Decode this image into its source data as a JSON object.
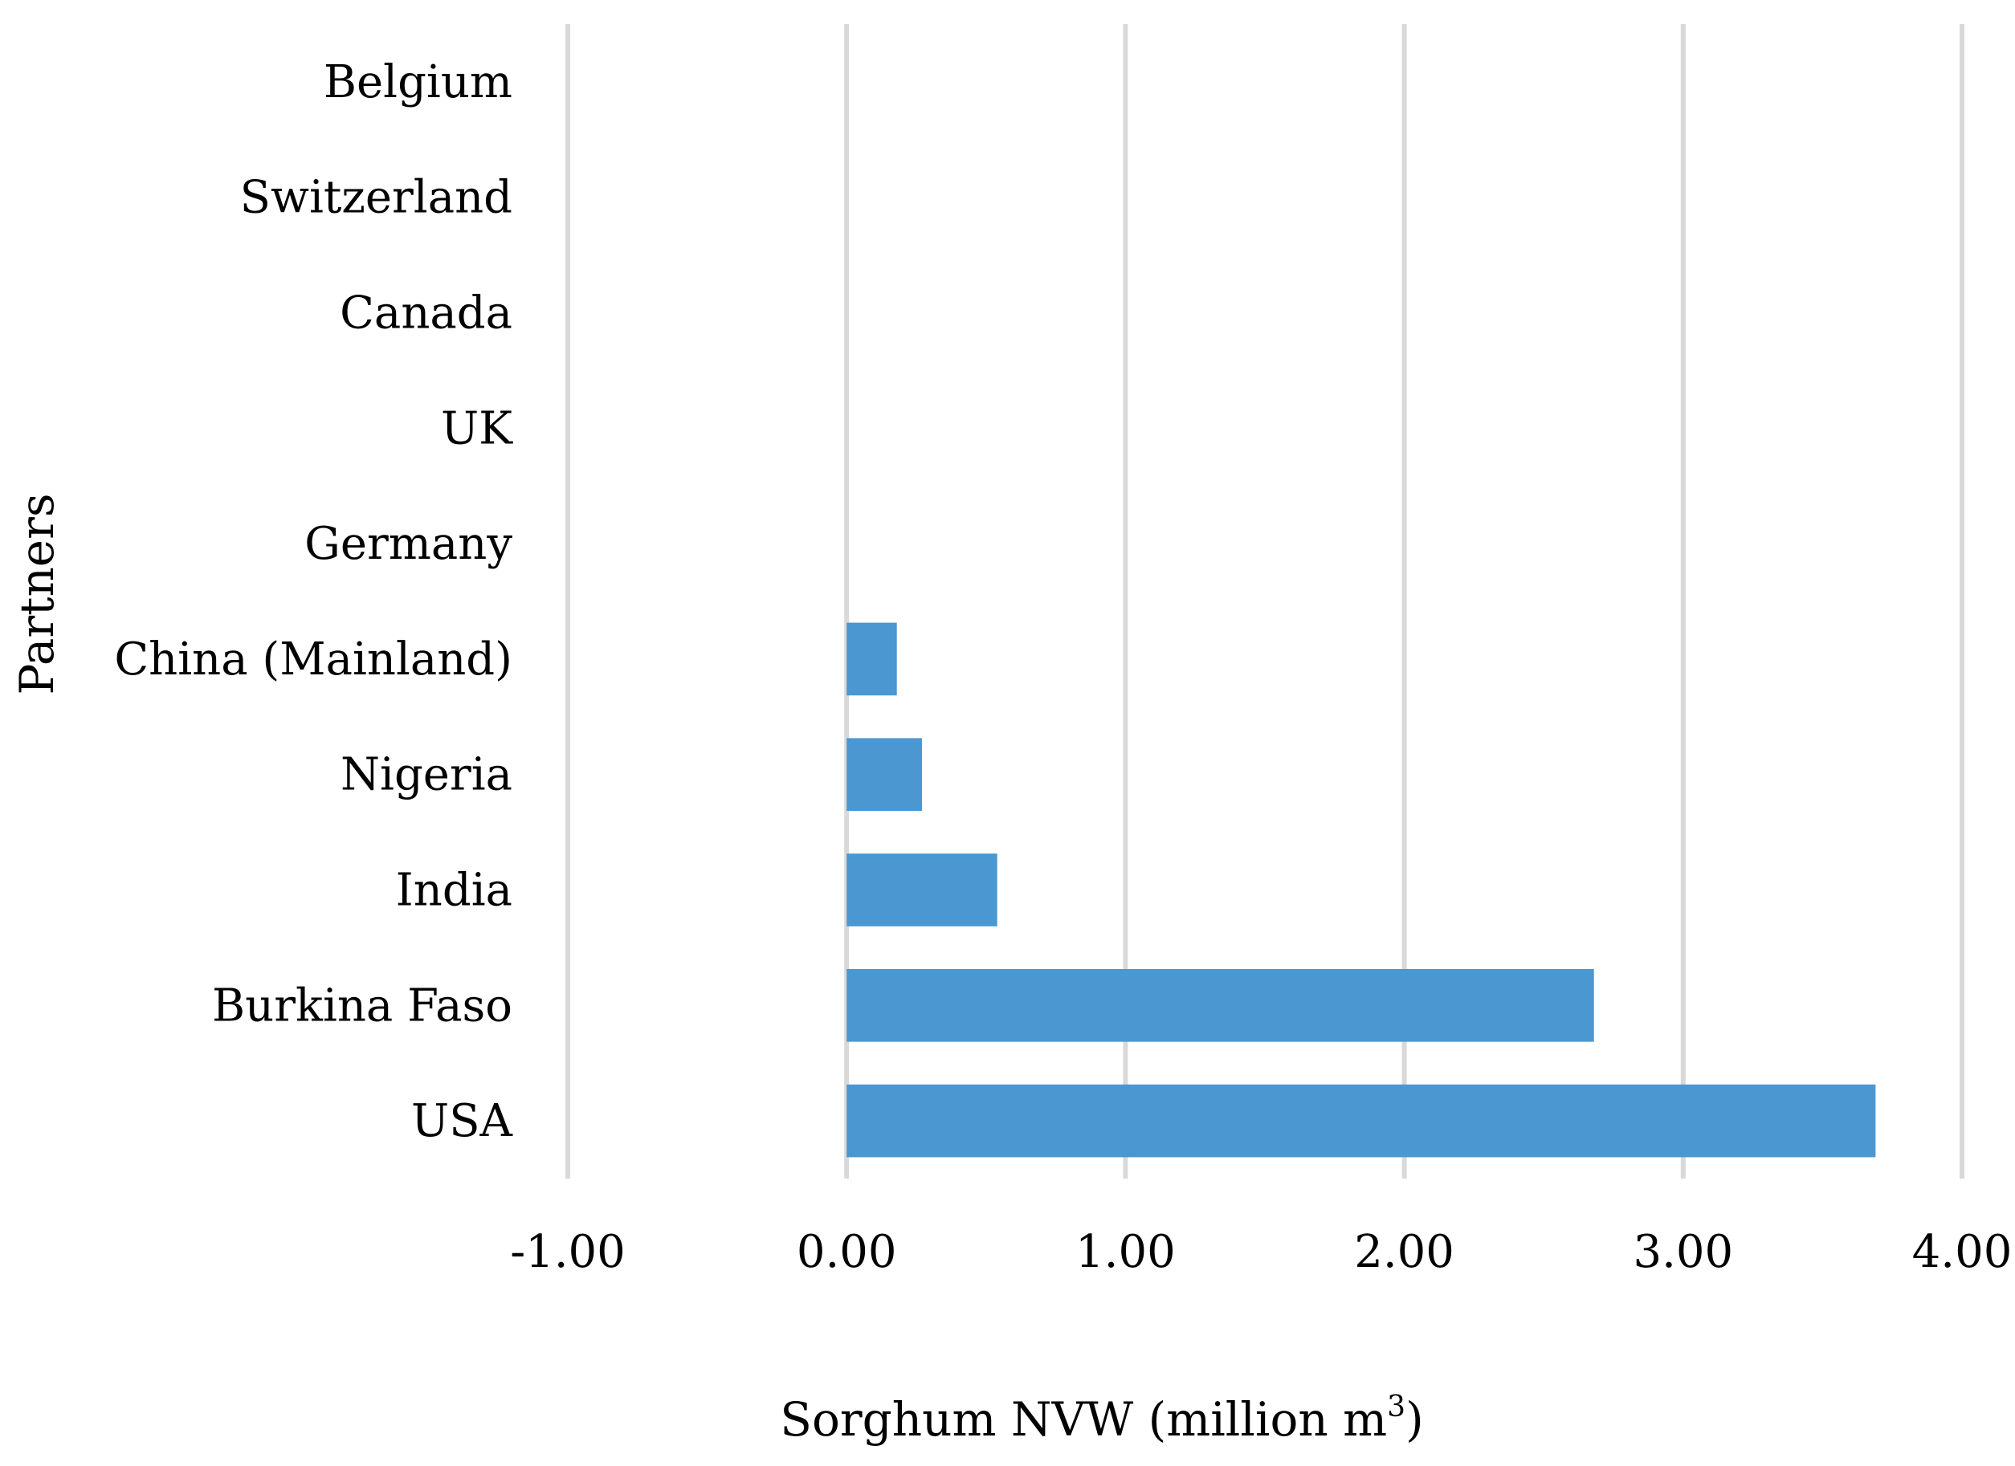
{
  "chart_data": {
    "type": "bar",
    "orientation": "horizontal",
    "categories": [
      "Belgium",
      "Switzerland",
      "Canada",
      "UK",
      "Germany",
      "China (Mainland)",
      "Nigeria",
      "India",
      "Burkina Faso",
      "USA"
    ],
    "values": [
      0.0,
      0.0,
      0.0,
      0.0,
      0.0,
      0.18,
      0.27,
      0.54,
      2.68,
      3.69
    ],
    "xlim": [
      -1.0,
      4.0
    ],
    "xticks": [
      "-1.00",
      "0.00",
      "1.00",
      "2.00",
      "3.00",
      "4.00"
    ],
    "xlabel": "Sorghum NVW (million m",
    "xlabel_superscript": "3",
    "xlabel_suffix": ")",
    "ylabel": "Partners",
    "grid": true,
    "bar_color": "#4a97d2",
    "grid_color": "#d9d9d9"
  }
}
